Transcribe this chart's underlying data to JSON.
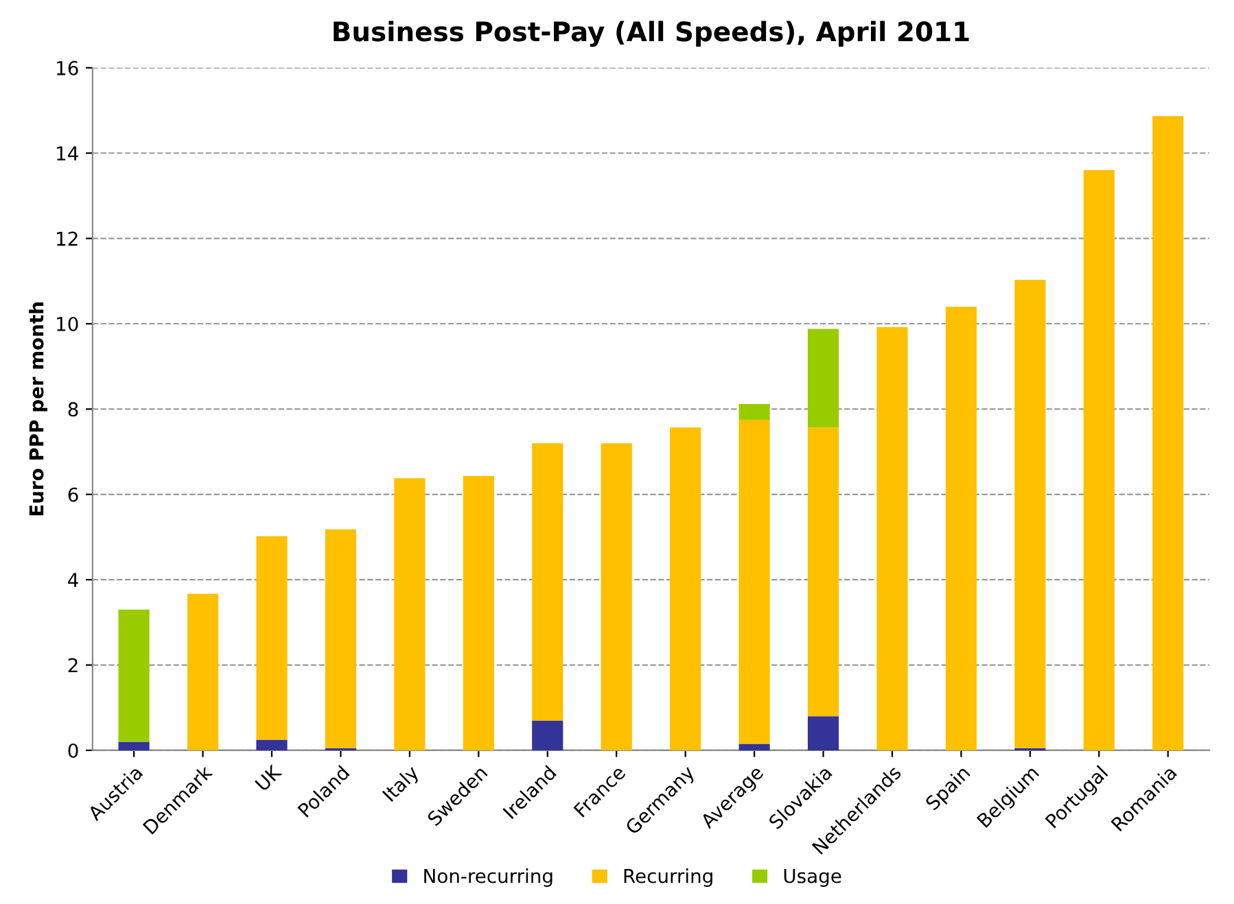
{
  "chart_data": {
    "type": "bar",
    "title": "Business Post-Pay (All Speeds), April 2011",
    "ylabel": "Euro PPP per month",
    "categories": [
      "Austria",
      "Denmark",
      "UK",
      "Poland",
      "Italy",
      "Sweden",
      "Ireland",
      "France",
      "Germany",
      "Average",
      "Slovakia",
      "Netherlands",
      "Spain",
      "Belgium",
      "Portugal",
      "Romania"
    ],
    "stacked": true,
    "series": [
      {
        "name": "Non-recurring",
        "color": "#333399",
        "values": [
          0.2,
          0,
          0.25,
          0.05,
          0,
          0,
          0.7,
          0,
          0,
          0.15,
          0.8,
          0,
          0,
          0.05,
          0,
          0
        ]
      },
      {
        "name": "Recurring",
        "color": "#ffc000",
        "values": [
          0,
          3.67,
          4.77,
          5.13,
          6.38,
          6.43,
          6.5,
          7.2,
          7.57,
          7.6,
          6.77,
          9.92,
          10.4,
          10.98,
          13.6,
          14.87
        ]
      },
      {
        "name": "Usage",
        "color": "#99cc00",
        "values": [
          3.1,
          0,
          0,
          0,
          0,
          0,
          0,
          0,
          0,
          0.37,
          2.31,
          0,
          0,
          0,
          0,
          0
        ]
      }
    ],
    "ylim": [
      0,
      16
    ],
    "yticks": [
      0,
      2,
      4,
      6,
      8,
      10,
      12,
      14,
      16
    ],
    "grid": "y",
    "legend": "bottom"
  }
}
